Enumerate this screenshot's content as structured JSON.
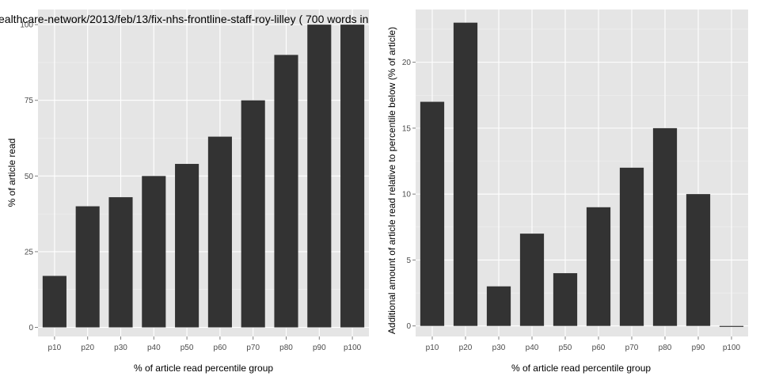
{
  "page_title": "ealthcare-network/2013/feb/13/fix-nhs-frontline-staff-roy-lilley ( 700 words in",
  "colors": {
    "panel_bg": "#e5e5e5",
    "grid_major": "#ffffff",
    "grid_minor": "#f2f2f2",
    "bar": "#333333",
    "tick_text": "#4d4d4d"
  },
  "chart_data": [
    {
      "type": "bar",
      "categories": [
        "p10",
        "p20",
        "p30",
        "p40",
        "p50",
        "p60",
        "p70",
        "p80",
        "p90",
        "p100"
      ],
      "values": [
        17,
        40,
        43,
        50,
        54,
        63,
        75,
        90,
        100,
        100
      ],
      "xlabel": "% of article read percentile group",
      "ylabel": "% of article read",
      "ylim": [
        -3,
        105
      ],
      "yticks": [
        0,
        25,
        50,
        75,
        100
      ],
      "grid": true,
      "legend": "none"
    },
    {
      "type": "bar",
      "categories": [
        "p10",
        "p20",
        "p30",
        "p40",
        "p50",
        "p60",
        "p70",
        "p80",
        "p90",
        "p100"
      ],
      "values": [
        17,
        23,
        3,
        7,
        4,
        9,
        12,
        15,
        10,
        0
      ],
      "xlabel": "% of article read percentile group",
      "ylabel": "Additional amount of article read relative to percentile below (% of article)",
      "ylim": [
        -0.8,
        24
      ],
      "yticks": [
        0,
        5,
        10,
        15,
        20
      ],
      "grid": true,
      "legend": "none"
    }
  ]
}
